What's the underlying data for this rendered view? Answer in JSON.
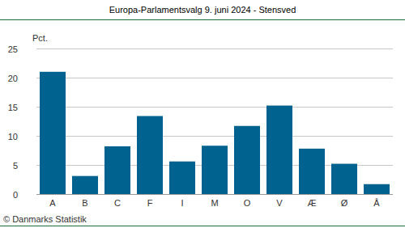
{
  "chart_data": {
    "type": "bar",
    "title": "Europa-Parlamentsvalg 9. juni 2024 - Stensved",
    "y_label": "Pct.",
    "source": "© Danmarks Statistik",
    "categories": [
      "A",
      "B",
      "C",
      "F",
      "I",
      "M",
      "O",
      "V",
      "Æ",
      "Ø",
      "Å"
    ],
    "values": [
      21.0,
      3.1,
      8.2,
      13.4,
      5.6,
      8.3,
      11.7,
      15.2,
      7.8,
      5.2,
      1.7
    ],
    "color": "#00628f",
    "ylim": [
      0,
      25
    ],
    "yticks": [
      0,
      5,
      10,
      15,
      20,
      25
    ],
    "grid": true
  }
}
